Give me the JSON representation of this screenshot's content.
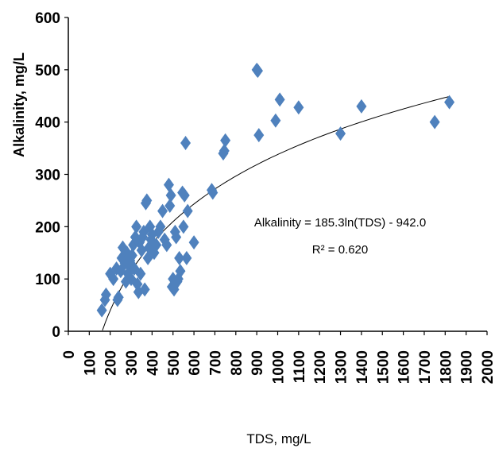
{
  "chart_data": {
    "type": "scatter",
    "title": "",
    "xlabel": "TDS, mg/L",
    "ylabel": "Alkalinity, mg/L",
    "xlim": [
      0,
      2000
    ],
    "ylim": [
      0,
      600
    ],
    "x_ticks": [
      "0",
      "100",
      "200",
      "300",
      "400",
      "500",
      "600",
      "700",
      "800",
      "900",
      "1000",
      "1100",
      "1200",
      "1300",
      "1400",
      "1500",
      "1600",
      "1700",
      "1800",
      "1900",
      "2000"
    ],
    "y_ticks": [
      "0",
      "100",
      "200",
      "300",
      "400",
      "500",
      "600"
    ],
    "grid": false,
    "legend": "none",
    "marker_color": "#4f81bd",
    "marker": "diamond",
    "series": [
      {
        "points": [
          [
            160,
            40
          ],
          [
            175,
            60
          ],
          [
            180,
            70
          ],
          [
            200,
            110
          ],
          [
            215,
            100
          ],
          [
            230,
            120
          ],
          [
            235,
            60
          ],
          [
            240,
            65
          ],
          [
            250,
            115
          ],
          [
            255,
            140
          ],
          [
            260,
            160
          ],
          [
            270,
            130
          ],
          [
            275,
            95
          ],
          [
            280,
            150
          ],
          [
            285,
            110
          ],
          [
            290,
            125
          ],
          [
            295,
            135
          ],
          [
            300,
            100
          ],
          [
            305,
            145
          ],
          [
            310,
            165
          ],
          [
            315,
            120
          ],
          [
            320,
            180
          ],
          [
            325,
            200
          ],
          [
            330,
            90
          ],
          [
            335,
            75
          ],
          [
            340,
            170
          ],
          [
            345,
            110
          ],
          [
            350,
            155
          ],
          [
            355,
            180
          ],
          [
            360,
            190
          ],
          [
            365,
            80
          ],
          [
            370,
            245
          ],
          [
            375,
            250
          ],
          [
            380,
            140
          ],
          [
            385,
            160
          ],
          [
            390,
            200
          ],
          [
            395,
            175
          ],
          [
            400,
            185
          ],
          [
            410,
            150
          ],
          [
            420,
            165
          ],
          [
            430,
            190
          ],
          [
            440,
            200
          ],
          [
            450,
            230
          ],
          [
            460,
            175
          ],
          [
            470,
            165
          ],
          [
            480,
            280
          ],
          [
            485,
            240
          ],
          [
            490,
            260
          ],
          [
            495,
            85
          ],
          [
            500,
            100
          ],
          [
            505,
            80
          ],
          [
            510,
            190
          ],
          [
            515,
            180
          ],
          [
            520,
            95
          ],
          [
            525,
            100
          ],
          [
            530,
            140
          ],
          [
            535,
            115
          ],
          [
            545,
            265
          ],
          [
            550,
            200
          ],
          [
            555,
            260
          ],
          [
            560,
            360
          ],
          [
            565,
            140
          ],
          [
            570,
            230
          ],
          [
            600,
            170
          ],
          [
            685,
            270
          ],
          [
            690,
            265
          ],
          [
            740,
            340
          ],
          [
            745,
            345
          ],
          [
            750,
            365
          ],
          [
            900,
            500
          ],
          [
            905,
            498
          ],
          [
            910,
            375
          ],
          [
            990,
            403
          ],
          [
            1010,
            443
          ],
          [
            1100,
            428
          ],
          [
            1300,
            378
          ],
          [
            1400,
            430
          ],
          [
            1750,
            400
          ],
          [
            1820,
            438
          ]
        ]
      }
    ],
    "trendline": {
      "type": "logarithmic",
      "a": 185.3,
      "b": -942.0,
      "x_range": [
        163,
        1820
      ],
      "equation": "Alkalinity = 185.3ln(TDS) - 942.0",
      "r2": "R² = 0.620"
    }
  }
}
